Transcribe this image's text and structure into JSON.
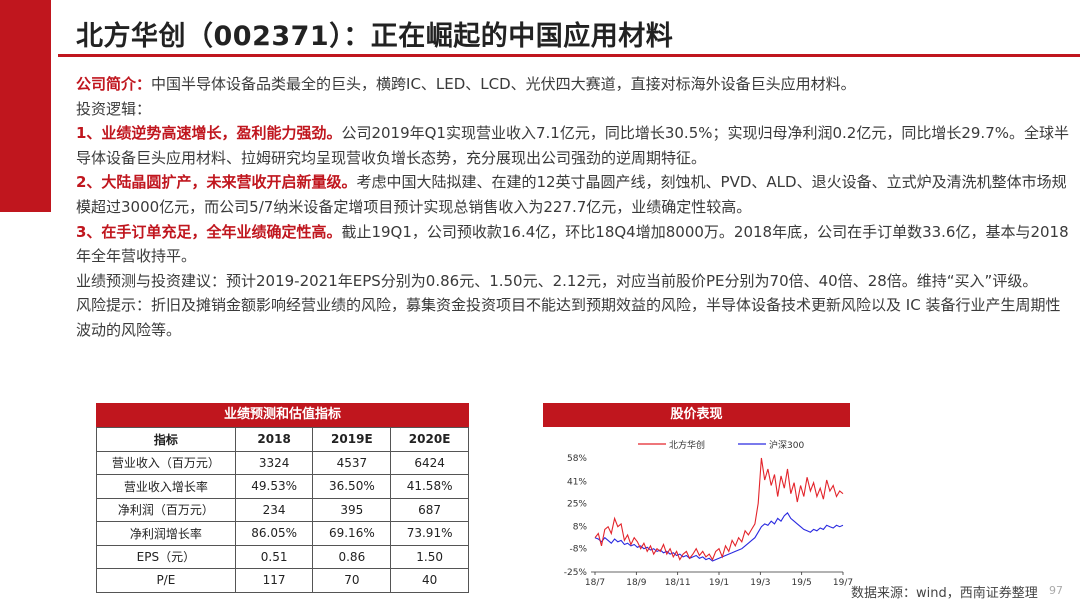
{
  "title": "北方华创（002371）：正在崛起的中国应用材料",
  "intro": {
    "label": "公司简介：",
    "text": "中国半导体设备品类最全的巨头，横跨IC、LED、LCD、光伏四大赛道，直接对标海外设备巨头应用材料。"
  },
  "logic_label": "投资逻辑：",
  "points": [
    {
      "head": "1、业绩逆势高速增长，盈利能力强劲。",
      "text": "公司2019年Q1实现营业收入7.1亿元，同比增长30.5%；实现归母净利润0.2亿元，同比增长29.7%。全球半导体设备巨头应用材料、拉姆研究均呈现营收负增长态势，充分展现出公司强劲的逆周期特征。"
    },
    {
      "head": "2、大陆晶圆扩产，未来营收开启新量级。",
      "text": "考虑中国大陆拟建、在建的12英寸晶圆产线，刻蚀机、PVD、ALD、退火设备、立式炉及清洗机整体市场规模超过3000亿元，而公司5/7纳米设备定增项目预计实现总销售收入为227.7亿元，业绩确定性较高。"
    },
    {
      "head": "3、在手订单充足，全年业绩确定性高。",
      "text": "截止19Q1，公司预收款16.4亿，环比18Q4增加8000万。2018年底，公司在手订单数33.6亿，基本与2018年全年营收持平。"
    }
  ],
  "forecast": "业绩预测与投资建议：预计2019-2021年EPS分别为0.86元、1.50元、2.12元，对应当前股价PE分别为70倍、40倍、28倍。维持“买入”评级。",
  "risk": "风险提示：折旧及摊销金额影响经营业绩的风险，募集资金投资项目不能达到预期效益的风险，半导体设备技术更新风险以及 IC 装备行业产生周期性波动的风险等。",
  "table": {
    "title": "业绩预测和估值指标",
    "headers": [
      "指标",
      "2018",
      "2019E",
      "2020E"
    ],
    "rows": [
      [
        "营业收入（百万元）",
        "3324",
        "4537",
        "6424"
      ],
      [
        "营业收入增长率",
        "49.53%",
        "36.50%",
        "41.58%"
      ],
      [
        "净利润（百万元）",
        "234",
        "395",
        "687"
      ],
      [
        "净利润增长率",
        "86.05%",
        "69.16%",
        "73.91%"
      ],
      [
        "EPS（元）",
        "0.51",
        "0.86",
        "1.50"
      ],
      [
        "P/E",
        "117",
        "70",
        "40"
      ]
    ]
  },
  "chart_data": {
    "type": "line",
    "title": "股价表现",
    "x_ticks": [
      "18/7",
      "18/9",
      "18/11",
      "19/1",
      "19/3",
      "19/5",
      "19/7"
    ],
    "y_ticks": [
      "58%",
      "41%",
      "25%",
      "8%",
      "-8%",
      "-25%"
    ],
    "ylim": [
      -25,
      58
    ],
    "legend_position": "top",
    "colors": {
      "北方华创": "#e3242b",
      "沪深300": "#2a2ae0"
    },
    "series": [
      {
        "name": "北方华创",
        "values": [
          0,
          3,
          -6,
          6,
          8,
          3,
          14,
          8,
          10,
          -2,
          2,
          -5,
          0,
          -3,
          -8,
          -4,
          -10,
          -6,
          -12,
          -8,
          -10,
          -5,
          -12,
          -8,
          -14,
          -10,
          -16,
          -12,
          -10,
          -15,
          -12,
          -8,
          -13,
          -10,
          -14,
          -12,
          -16,
          -10,
          -8,
          -14,
          -6,
          -10,
          -2,
          -6,
          0,
          -3,
          5,
          2,
          6,
          10,
          25,
          58,
          42,
          50,
          38,
          46,
          30,
          45,
          36,
          50,
          32,
          40,
          26,
          38,
          30,
          44,
          34,
          40,
          30,
          36,
          28,
          42,
          34,
          38,
          30,
          34,
          32
        ]
      },
      {
        "name": "沪深300",
        "values": [
          0,
          -1,
          -3,
          0,
          -2,
          -4,
          -1,
          -3,
          -2,
          -5,
          -4,
          -6,
          -5,
          -7,
          -6,
          -8,
          -7,
          -9,
          -8,
          -10,
          -9,
          -11,
          -10,
          -12,
          -11,
          -13,
          -12,
          -14,
          -13,
          -15,
          -14,
          -13,
          -15,
          -14,
          -16,
          -15,
          -17,
          -16,
          -15,
          -14,
          -13,
          -12,
          -11,
          -10,
          -9,
          -8,
          -6,
          -4,
          -2,
          0,
          4,
          8,
          10,
          9,
          12,
          10,
          14,
          12,
          16,
          18,
          14,
          12,
          10,
          8,
          6,
          5,
          4,
          6,
          5,
          7,
          6,
          9,
          8,
          7,
          9,
          8,
          9
        ]
      }
    ]
  },
  "source": "数据来源：wind，西南证券整理",
  "page_number": "97"
}
